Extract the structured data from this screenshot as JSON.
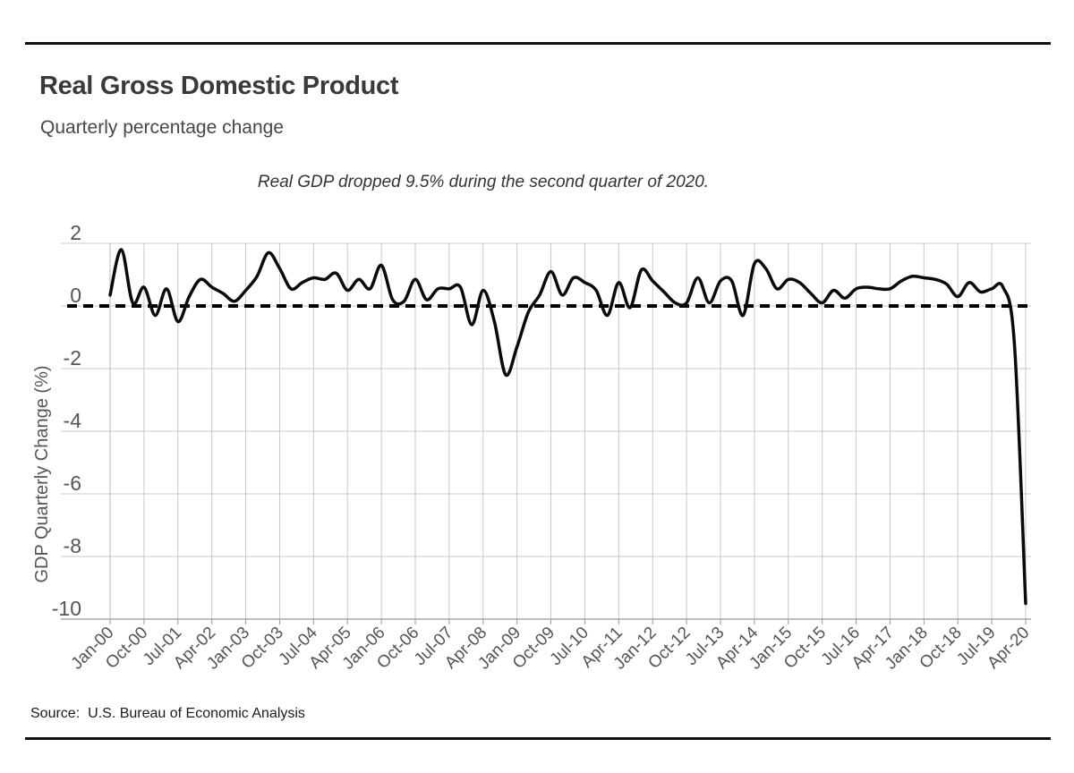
{
  "header": {
    "title": "Real Gross Domestic Product",
    "subtitle": "Quarterly percentage change"
  },
  "annotation": "Real GDP dropped 9.5% during the second quarter of 2020.",
  "source": {
    "label": "Source:",
    "text": "U.S. Bureau of Economic Analysis"
  },
  "colors": {
    "line": "#0a0a0a",
    "zero_line": "#000000",
    "grid": "#c8c8c8",
    "left_axis": "#b8b8b8",
    "bottom_axis": "#999999",
    "tick_label": "#555555",
    "rule": "#111111"
  },
  "chart_data": {
    "type": "line",
    "title": "Real Gross Domestic Product",
    "subtitle": "Quarterly percentage change",
    "xlabel": "",
    "ylabel": "GDP Quarterly Change (%)",
    "ylim": [
      -10,
      2
    ],
    "y_ticks": [
      2,
      0,
      -2,
      -4,
      -6,
      -8,
      -10
    ],
    "grid": true,
    "zero_reference_line": "dashed",
    "x_tick_every": 3,
    "x_tick_labels": [
      "Jan-00",
      "Oct-00",
      "Jul-01",
      "Apr-02",
      "Jan-03",
      "Oct-03",
      "Jul-04",
      "Apr-05",
      "Jan-06",
      "Oct-06",
      "Jul-07",
      "Apr-08",
      "Jan-09",
      "Oct-09",
      "Jul-10",
      "Apr-11",
      "Jan-12",
      "Oct-12",
      "Jul-13",
      "Apr-14",
      "Jan-15",
      "Oct-15",
      "Jul-16",
      "Apr-17",
      "Jan-18",
      "Oct-18",
      "Jul-19",
      "Apr-20"
    ],
    "x": [
      "Jan-00",
      "Apr-00",
      "Jul-00",
      "Oct-00",
      "Jan-01",
      "Apr-01",
      "Jul-01",
      "Oct-01",
      "Jan-02",
      "Apr-02",
      "Jul-02",
      "Oct-02",
      "Jan-03",
      "Apr-03",
      "Jul-03",
      "Oct-03",
      "Jan-04",
      "Apr-04",
      "Jul-04",
      "Oct-04",
      "Jan-05",
      "Apr-05",
      "Jul-05",
      "Oct-05",
      "Jan-06",
      "Apr-06",
      "Jul-06",
      "Oct-06",
      "Jan-07",
      "Apr-07",
      "Jul-07",
      "Oct-07",
      "Jan-08",
      "Apr-08",
      "Jul-08",
      "Oct-08",
      "Jan-09",
      "Apr-09",
      "Jul-09",
      "Oct-09",
      "Jan-10",
      "Apr-10",
      "Jul-10",
      "Oct-10",
      "Jan-11",
      "Apr-11",
      "Jul-11",
      "Oct-11",
      "Jan-12",
      "Apr-12",
      "Jul-12",
      "Oct-12",
      "Jan-13",
      "Apr-13",
      "Jul-13",
      "Oct-13",
      "Jan-14",
      "Apr-14",
      "Jul-14",
      "Oct-14",
      "Jan-15",
      "Apr-15",
      "Jul-15",
      "Oct-15",
      "Jan-16",
      "Apr-16",
      "Jul-16",
      "Oct-16",
      "Jan-17",
      "Apr-17",
      "Jul-17",
      "Oct-17",
      "Jan-18",
      "Apr-18",
      "Jul-18",
      "Oct-18",
      "Jan-19",
      "Apr-19",
      "Jul-19",
      "Oct-19",
      "Jan-20",
      "Apr-20"
    ],
    "values": [
      0.35,
      1.8,
      0.1,
      0.6,
      -0.3,
      0.55,
      -0.5,
      0.3,
      0.85,
      0.6,
      0.4,
      0.15,
      0.5,
      0.95,
      1.7,
      1.2,
      0.55,
      0.75,
      0.9,
      0.85,
      1.05,
      0.5,
      0.85,
      0.55,
      1.3,
      0.2,
      0.15,
      0.85,
      0.2,
      0.55,
      0.55,
      0.6,
      -0.6,
      0.5,
      -0.5,
      -2.2,
      -1.3,
      -0.2,
      0.35,
      1.1,
      0.35,
      0.9,
      0.75,
      0.5,
      -0.3,
      0.75,
      -0.05,
      1.15,
      0.8,
      0.45,
      0.1,
      0.1,
      0.9,
      0.1,
      0.8,
      0.8,
      -0.3,
      1.35,
      1.2,
      0.55,
      0.85,
      0.75,
      0.4,
      0.1,
      0.5,
      0.25,
      0.55,
      0.6,
      0.55,
      0.55,
      0.8,
      0.95,
      0.9,
      0.85,
      0.7,
      0.3,
      0.75,
      0.45,
      0.55,
      0.6,
      -1.2,
      -9.5
    ]
  }
}
